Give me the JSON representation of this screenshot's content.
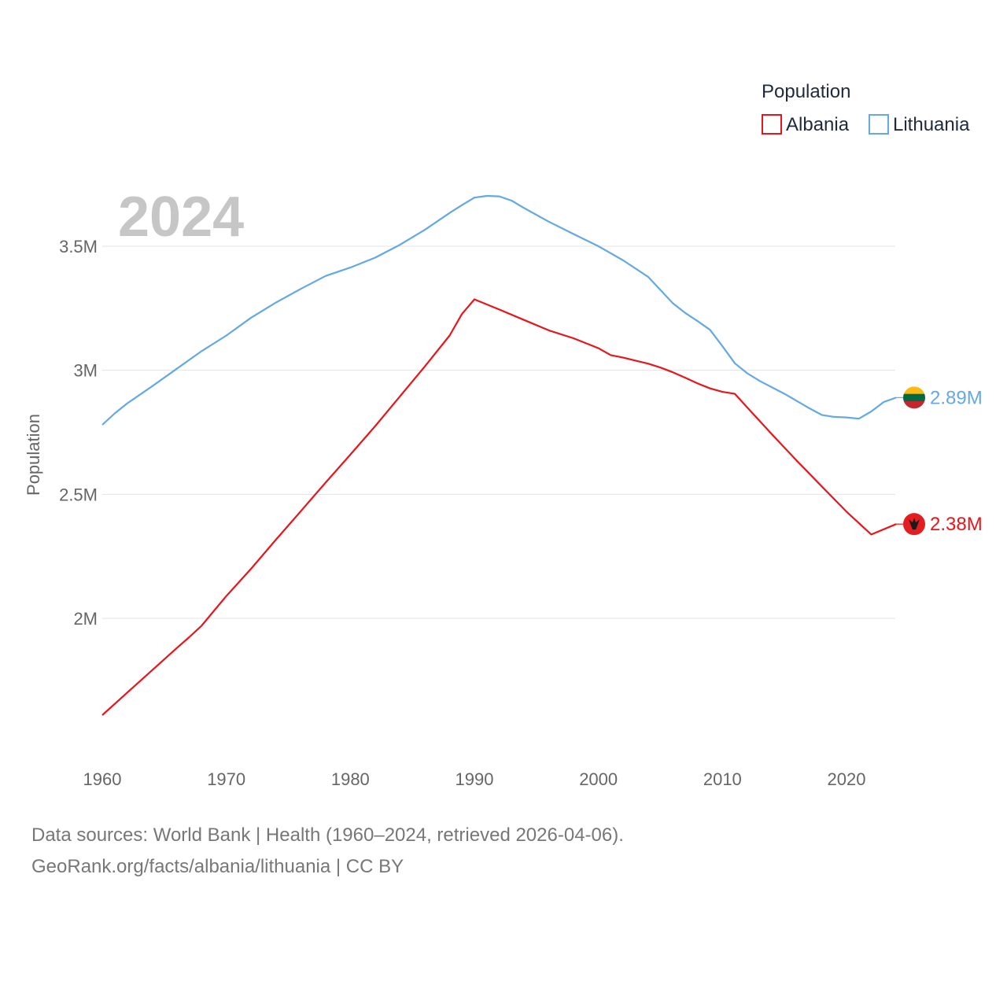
{
  "chart_data": {
    "type": "line",
    "title": "",
    "year_label": "2024",
    "xlabel": "",
    "ylabel": "Population",
    "xlim": [
      1960,
      2024
    ],
    "ylim": [
      1550000,
      3850000
    ],
    "x_ticks": [
      1960,
      1970,
      1980,
      1990,
      2000,
      2010,
      2020
    ],
    "x_tick_labels": [
      "1960",
      "1970",
      "1980",
      "1990",
      "2000",
      "2010",
      "2020"
    ],
    "y_ticks": [
      2000000,
      2500000,
      3000000,
      3500000
    ],
    "y_tick_labels": [
      "2M",
      "2.5M",
      "3M",
      "3.5M"
    ],
    "grid": true,
    "legend": {
      "title": "Population",
      "position": "top-right"
    },
    "series": [
      {
        "name": "Albania",
        "color": "#e8161b",
        "end_label": "2.38M",
        "flag_icon": "albania-flag-icon",
        "x": [
          1960,
          1962,
          1964,
          1966,
          1967,
          1968,
          1969,
          1970,
          1972,
          1974,
          1976,
          1978,
          1980,
          1982,
          1984,
          1986,
          1988,
          1989,
          1990,
          1992,
          1994,
          1996,
          1998,
          2000,
          2001,
          2002,
          2003,
          2004,
          2005,
          2006,
          2007,
          2008,
          2009,
          2010,
          2011,
          2012,
          2014,
          2016,
          2018,
          2020,
          2022,
          2024
        ],
        "values": [
          1610000,
          1700000,
          1790000,
          1880000,
          1924000,
          1970000,
          2030000,
          2090000,
          2200000,
          2317000,
          2432000,
          2547000,
          2660000,
          2775000,
          2895000,
          3015000,
          3140000,
          3227000,
          3286000,
          3245000,
          3203000,
          3161000,
          3129000,
          3089000,
          3061000,
          3051000,
          3039000,
          3027000,
          3011000,
          2992000,
          2970000,
          2947000,
          2927000,
          2913000,
          2905000,
          2850000,
          2741000,
          2635000,
          2532000,
          2430000,
          2338000,
          2380000
        ]
      },
      {
        "name": "Lithuania",
        "color": "#64a8e4",
        "end_label": "2.89M",
        "flag_icon": "lithuania-flag-icon",
        "x": [
          1960,
          1961,
          1962,
          1964,
          1966,
          1968,
          1970,
          1972,
          1974,
          1976,
          1978,
          1980,
          1982,
          1984,
          1986,
          1988,
          1989,
          1990,
          1991,
          1992,
          1993,
          1994,
          1996,
          1998,
          2000,
          2002,
          2004,
          2006,
          2007,
          2008,
          2009,
          2010,
          2011,
          2012,
          2013,
          2015,
          2017,
          2018,
          2019,
          2020,
          2021,
          2022,
          2023,
          2024
        ],
        "values": [
          2780000,
          2826000,
          2866000,
          2935000,
          3006000,
          3077000,
          3140000,
          3212000,
          3273000,
          3328000,
          3380000,
          3414000,
          3454000,
          3506000,
          3566000,
          3634000,
          3666000,
          3696000,
          3703000,
          3701000,
          3684000,
          3654000,
          3599000,
          3549000,
          3500000,
          3443000,
          3377000,
          3270000,
          3231000,
          3198000,
          3163000,
          3097000,
          3028000,
          2988000,
          2957000,
          2905000,
          2847000,
          2820000,
          2812000,
          2810000,
          2805000,
          2834000,
          2872000,
          2890000
        ]
      }
    ]
  },
  "footer": {
    "line1": "Data sources: World Bank | Health (1960–2024, retrieved 2026-04-06).",
    "line2": "GeoRank.org/facts/albania/lithuania | CC BY"
  }
}
